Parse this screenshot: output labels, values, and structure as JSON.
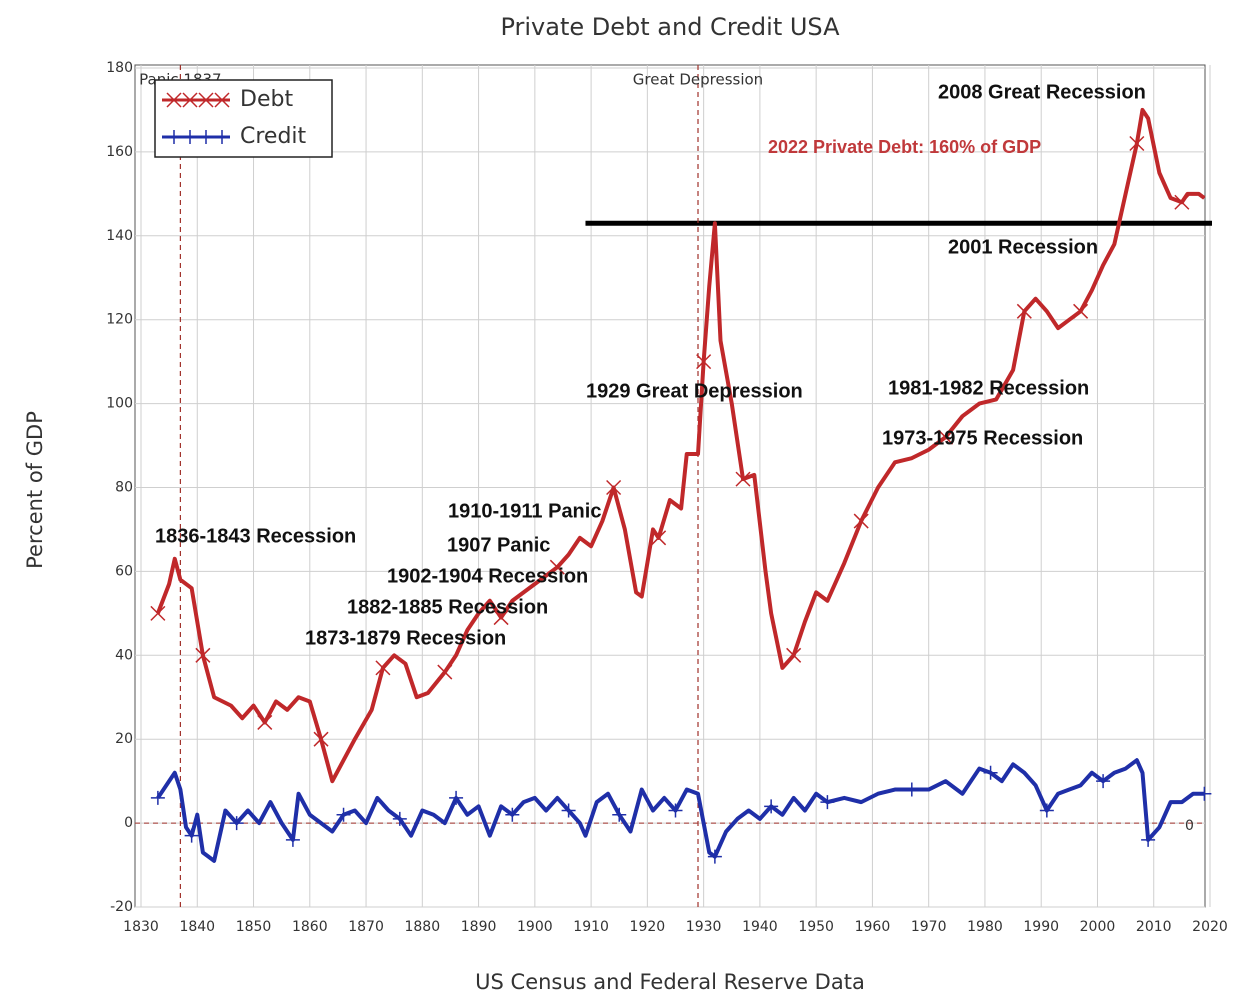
{
  "chart_data": {
    "type": "line",
    "title": "Private Debt and Credit USA",
    "xlabel": "US Census and Federal Reserve Data",
    "ylabel": "Percent of GDP",
    "xlim": [
      1830,
      2020
    ],
    "ylim": [
      -20,
      180
    ],
    "xticks": [
      1830,
      1840,
      1850,
      1860,
      1870,
      1880,
      1890,
      1900,
      1910,
      1920,
      1930,
      1940,
      1950,
      1960,
      1970,
      1980,
      1990,
      2000,
      2010,
      2020
    ],
    "yticks": [
      -20,
      0,
      20,
      40,
      60,
      80,
      100,
      120,
      140,
      160,
      180
    ],
    "grid": true,
    "legend": "upper left",
    "series": [
      {
        "name": "Debt",
        "color": "#c0282a",
        "marker": "x",
        "x": [
          1833,
          1835,
          1836,
          1837,
          1839,
          1841,
          1843,
          1846,
          1848,
          1850,
          1852,
          1854,
          1856,
          1858,
          1860,
          1862,
          1864,
          1866,
          1868,
          1871,
          1873,
          1875,
          1877,
          1879,
          1881,
          1884,
          1886,
          1888,
          1890,
          1892,
          1894,
          1896,
          1898,
          1900,
          1902,
          1904,
          1906,
          1908,
          1910,
          1912,
          1914,
          1916,
          1918,
          1919,
          1921,
          1922,
          1924,
          1926,
          1927,
          1929,
          1930,
          1931,
          1932,
          1933,
          1935,
          1937,
          1939,
          1941,
          1942,
          1944,
          1946,
          1948,
          1950,
          1952,
          1955,
          1958,
          1961,
          1964,
          1967,
          1970,
          1973,
          1976,
          1979,
          1982,
          1985,
          1987,
          1989,
          1991,
          1993,
          1995,
          1997,
          1999,
          2001,
          2003,
          2005,
          2007,
          2008,
          2009,
          2011,
          2013,
          2015,
          2016,
          2018,
          2019
        ],
        "values": [
          50,
          57,
          63,
          58,
          56,
          40,
          30,
          28,
          25,
          28,
          24,
          29,
          27,
          30,
          29,
          20,
          10,
          15,
          20,
          27,
          37,
          40,
          38,
          30,
          31,
          36,
          40,
          46,
          50,
          53,
          49,
          53,
          55,
          57,
          59,
          61,
          64,
          68,
          66,
          72,
          80,
          70,
          55,
          54,
          70,
          68,
          77,
          75,
          88,
          88,
          110,
          128,
          143,
          115,
          100,
          82,
          83,
          60,
          50,
          37,
          40,
          48,
          55,
          53,
          62,
          72,
          80,
          86,
          87,
          89,
          92,
          97,
          100,
          101,
          108,
          122,
          125,
          122,
          118,
          120,
          122,
          127,
          133,
          138,
          150,
          162,
          170,
          168,
          155,
          149,
          148,
          150,
          150,
          149
        ]
      },
      {
        "name": "Credit",
        "color": "#1f2fa8",
        "marker": "+",
        "x": [
          1833,
          1835,
          1836,
          1837,
          1838,
          1839,
          1840,
          1841,
          1843,
          1845,
          1847,
          1849,
          1851,
          1853,
          1855,
          1857,
          1858,
          1860,
          1862,
          1864,
          1866,
          1868,
          1870,
          1872,
          1874,
          1876,
          1878,
          1880,
          1882,
          1884,
          1886,
          1888,
          1890,
          1892,
          1894,
          1896,
          1898,
          1900,
          1902,
          1904,
          1906,
          1908,
          1909,
          1911,
          1913,
          1915,
          1917,
          1919,
          1921,
          1923,
          1925,
          1927,
          1929,
          1930,
          1931,
          1932,
          1934,
          1936,
          1938,
          1940,
          1942,
          1944,
          1946,
          1948,
          1950,
          1952,
          1955,
          1958,
          1961,
          1964,
          1967,
          1970,
          1973,
          1976,
          1979,
          1981,
          1983,
          1985,
          1987,
          1989,
          1991,
          1993,
          1995,
          1997,
          1999,
          2001,
          2003,
          2005,
          2007,
          2008,
          2009,
          2011,
          2013,
          2015,
          2017,
          2019
        ],
        "values": [
          6,
          10,
          12,
          8,
          -1,
          -3,
          2,
          -7,
          -9,
          3,
          0,
          3,
          0,
          5,
          0,
          -4,
          7,
          2,
          0,
          -2,
          2,
          3,
          0,
          6,
          3,
          1,
          -3,
          3,
          2,
          0,
          6,
          2,
          4,
          -3,
          4,
          2,
          5,
          6,
          3,
          6,
          3,
          0,
          -3,
          5,
          7,
          2,
          -2,
          8,
          3,
          6,
          3,
          8,
          7,
          0,
          -7,
          -8,
          -2,
          1,
          3,
          1,
          4,
          2,
          6,
          3,
          7,
          5,
          6,
          5,
          7,
          8,
          8,
          8,
          10,
          7,
          13,
          12,
          10,
          14,
          12,
          9,
          3,
          7,
          8,
          9,
          12,
          10,
          12,
          13,
          15,
          12,
          -4,
          -1,
          5,
          5,
          7,
          7
        ]
      }
    ],
    "reference_lines": [
      {
        "y": 0,
        "color": "#a0302a",
        "dashed": true
      },
      {
        "y": 143,
        "color": "#000000",
        "dashed": false,
        "xstart": 1909
      }
    ],
    "vlines": [
      {
        "x": 1837,
        "label": "Panic 1837",
        "color": "#a0302a"
      },
      {
        "x": 1929,
        "label": "Great Depression",
        "color": "#a0302a"
      }
    ],
    "annotations": [
      {
        "text": "2008 Great Recession",
        "color": "#111111"
      },
      {
        "text": "2022 Private Debt: 160% of GDP",
        "color": "#c0393b"
      },
      {
        "text": "2001 Recession",
        "color": "#111111"
      },
      {
        "text": "1929 Great Depression",
        "color": "#111111"
      },
      {
        "text": "1981-1982 Recession",
        "color": "#111111"
      },
      {
        "text": "1973-1975 Recession",
        "color": "#111111"
      },
      {
        "text": "1910-1911 Panic",
        "color": "#111111"
      },
      {
        "text": "1836-1843 Recession",
        "color": "#111111"
      },
      {
        "text": "1907 Panic",
        "color": "#111111"
      },
      {
        "text": "1902-1904 Recession",
        "color": "#111111"
      },
      {
        "text": "1882-1885 Recession",
        "color": "#111111"
      },
      {
        "text": "1873-1879 Recession",
        "color": "#111111"
      },
      {
        "text": "0",
        "color": "#333333"
      }
    ]
  }
}
